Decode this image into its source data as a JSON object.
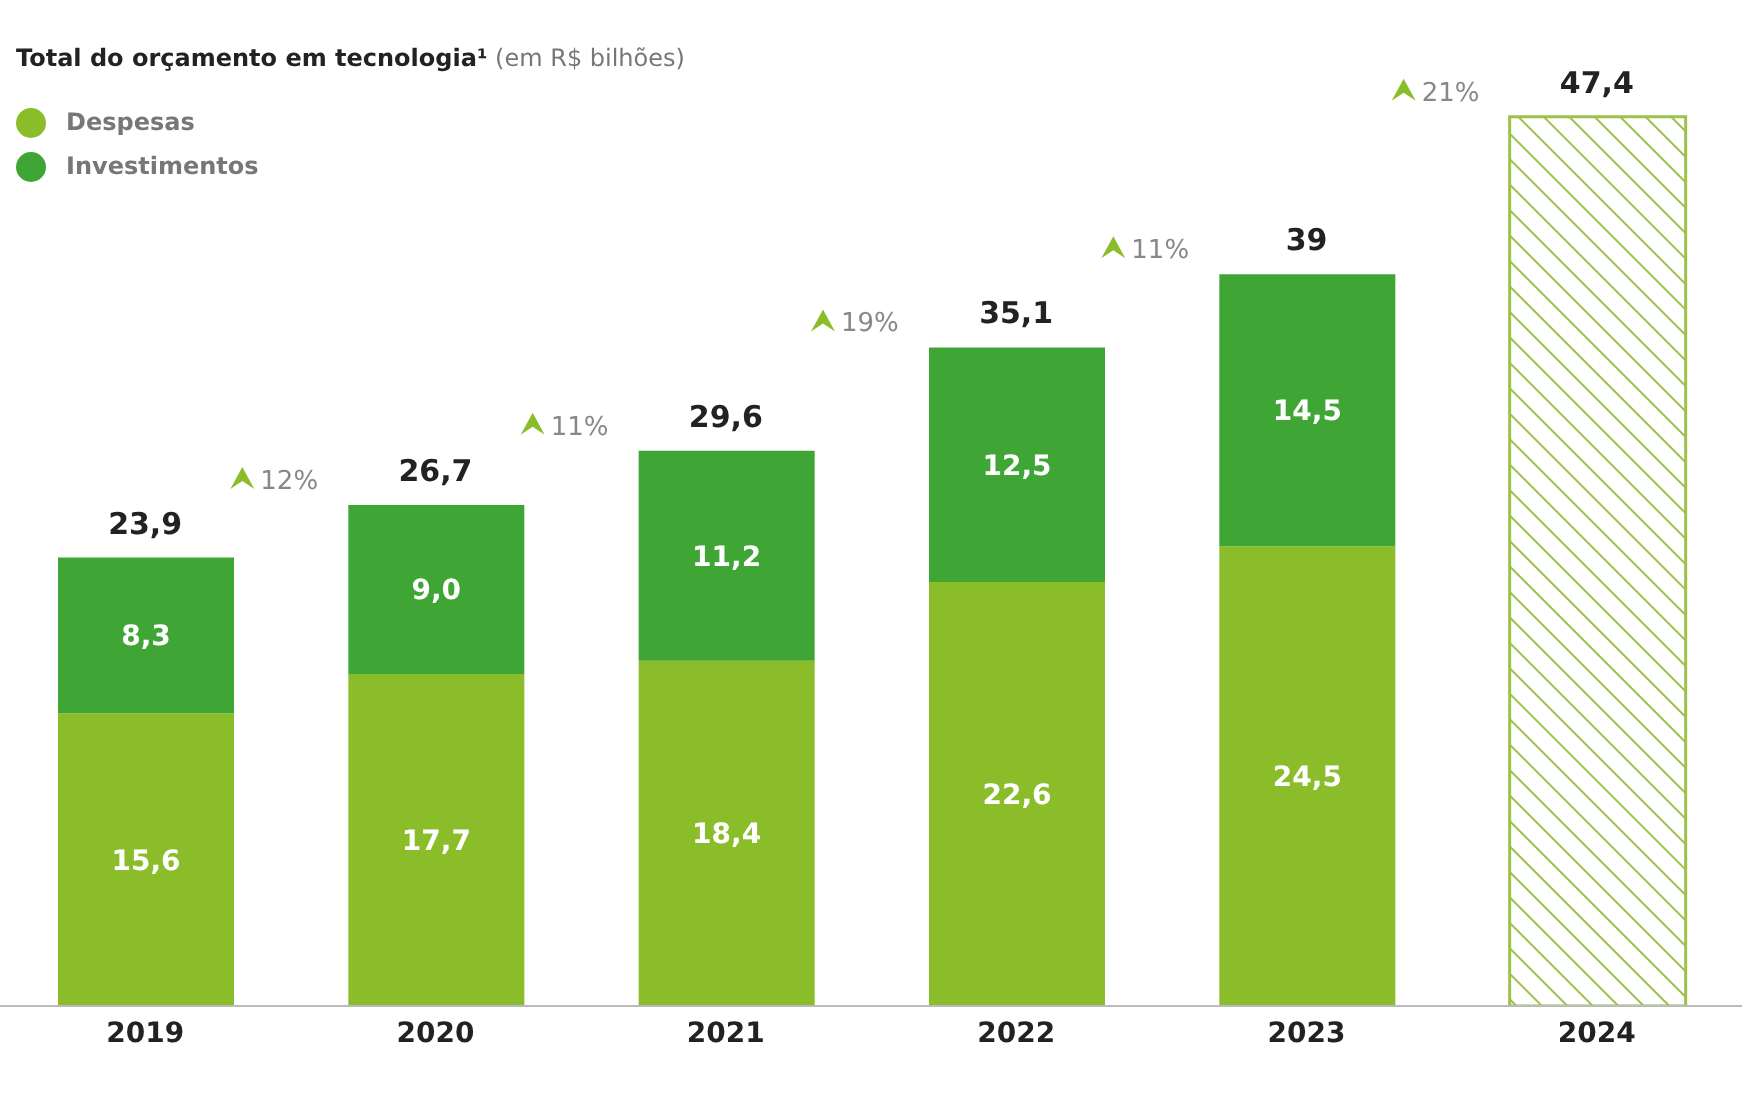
{
  "chart_data": {
    "type": "bar",
    "title": "Total do orçamento em tecnologia¹",
    "subtitle": "(em R$ bilhões)",
    "categories": [
      "2019",
      "2020",
      "2021",
      "2022",
      "2023",
      "2024"
    ],
    "stacked": true,
    "legend": "top left",
    "series": [
      {
        "name": "Despesas",
        "color": "#8bbd2a",
        "values": [
          15.6,
          17.7,
          18.4,
          22.6,
          24.5,
          null
        ],
        "value_labels": [
          "15,6",
          "17,7",
          "18,4",
          "22,6",
          "24,5",
          null
        ]
      },
      {
        "name": "Investimentos",
        "color": "#3fa535",
        "values": [
          8.3,
          9.0,
          11.2,
          12.5,
          14.5,
          null
        ],
        "value_labels": [
          "8,3",
          "9,0",
          "11,2",
          "12,5",
          "14,5",
          null
        ]
      },
      {
        "type": "bar",
        "color": "#9bc24a",
        "values": [
          null,
          null,
          null,
          null,
          null,
          47.4
        ]
      }
    ],
    "totals": [
      "23,9",
      "26,7",
      "29,6",
      "35,1",
      "39",
      "47,4"
    ],
    "annotations": [
      "12%",
      "11%",
      "19%",
      "11%",
      "21%"
    ]
  }
}
